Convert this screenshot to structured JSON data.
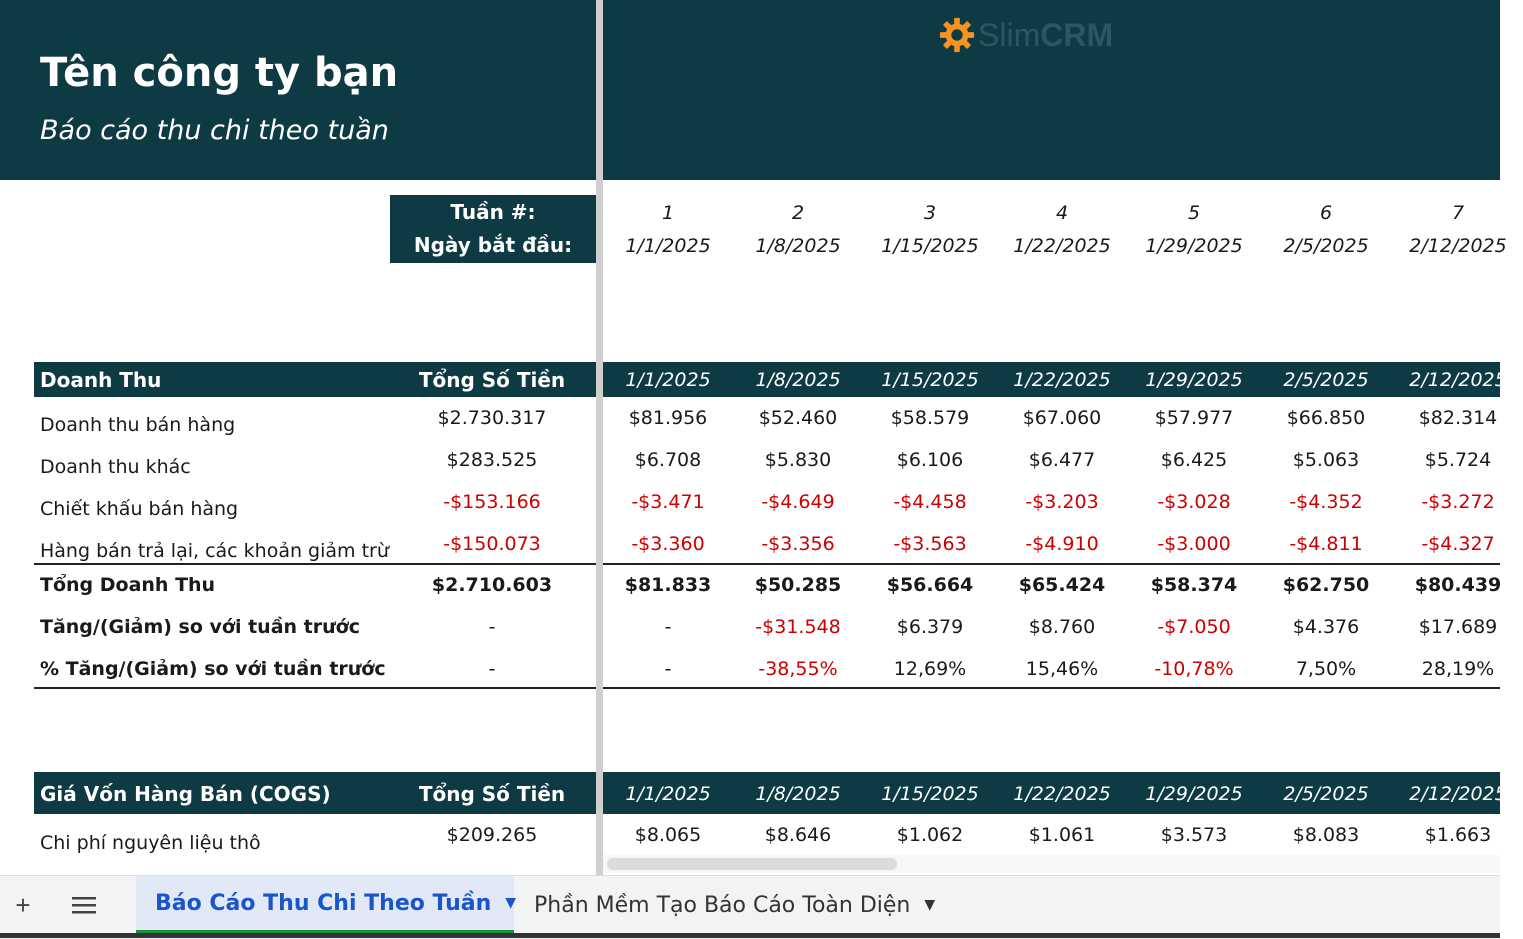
{
  "header": {
    "company": "Tên công ty bạn",
    "subtitle": "Báo cáo thu chi theo tuần",
    "logo": {
      "part1": "Slim",
      "part2": "CRM",
      "icon": "gear-icon",
      "accent": "#f7931e"
    }
  },
  "week_box": {
    "week_label": "Tuần #:",
    "start_label": "Ngày bắt đầu:"
  },
  "weeks": [
    {
      "num": "1",
      "date": "1/1/2025"
    },
    {
      "num": "2",
      "date": "1/8/2025"
    },
    {
      "num": "3",
      "date": "1/15/2025"
    },
    {
      "num": "4",
      "date": "1/22/2025"
    },
    {
      "num": "5",
      "date": "1/29/2025"
    },
    {
      "num": "6",
      "date": "2/5/2025"
    },
    {
      "num": "7",
      "date": "2/12/2025"
    }
  ],
  "revenue": {
    "title": "Doanh Thu",
    "total_header": "Tổng Số Tiền",
    "rows": [
      {
        "label": "Doanh thu bán hàng",
        "total": "$2.730.317",
        "values": [
          "$81.956",
          "$52.460",
          "$58.579",
          "$67.060",
          "$57.977",
          "$66.850",
          "$82.314"
        ]
      },
      {
        "label": "Doanh thu khác",
        "total": "$283.525",
        "values": [
          "$6.708",
          "$5.830",
          "$6.106",
          "$6.477",
          "$6.425",
          "$5.063",
          "$5.724"
        ]
      },
      {
        "label": "Chiết khấu bán hàng",
        "total": "-$153.166",
        "values": [
          "-$3.471",
          "-$4.649",
          "-$4.458",
          "-$3.203",
          "-$3.028",
          "-$4.352",
          "-$3.272"
        ]
      },
      {
        "label": "Hàng bán trả lại, các khoản giảm trừ",
        "total": "-$150.073",
        "values": [
          "-$3.360",
          "-$3.356",
          "-$3.563",
          "-$4.910",
          "-$3.000",
          "-$4.811",
          "-$4.327"
        ]
      }
    ],
    "total_row": {
      "label": "Tổng Doanh Thu",
      "total": "$2.710.603",
      "values": [
        "$81.833",
        "$50.285",
        "$56.664",
        "$65.424",
        "$58.374",
        "$62.750",
        "$80.439"
      ]
    },
    "change_row": {
      "label": "Tăng/(Giảm) so với tuần trước",
      "total": "-",
      "values": [
        "-",
        "-$31.548",
        "$6.379",
        "$8.760",
        "-$7.050",
        "$4.376",
        "$17.689"
      ]
    },
    "pct_row": {
      "label": "% Tăng/(Giảm) so với tuần trước",
      "total": "-",
      "values": [
        "-",
        "-38,55%",
        "12,69%",
        "15,46%",
        "-10,78%",
        "7,50%",
        "28,19%"
      ]
    }
  },
  "cogs": {
    "title": "Giá Vốn Hàng Bán (COGS)",
    "total_header": "Tổng Số Tiền",
    "rows": [
      {
        "label": "Chi phí nguyên liệu thô",
        "total": "$209.265",
        "values": [
          "$8.065",
          "$8.646",
          "$1.062",
          "$1.061",
          "$3.573",
          "$8.083",
          "$1.663"
        ]
      }
    ]
  },
  "tabs": {
    "add_icon": "plus-icon",
    "menu_icon": "menu-icon",
    "items": [
      {
        "label": "Báo Cáo Thu Chi Theo Tuần",
        "active": true
      },
      {
        "label": "Phần Mềm Tạo Báo Cáo Toàn Diện",
        "active": false
      }
    ]
  },
  "colors": {
    "header_bg": "#0e3a44",
    "negative": "#cc0000",
    "active_tab": "#1a56c9"
  }
}
